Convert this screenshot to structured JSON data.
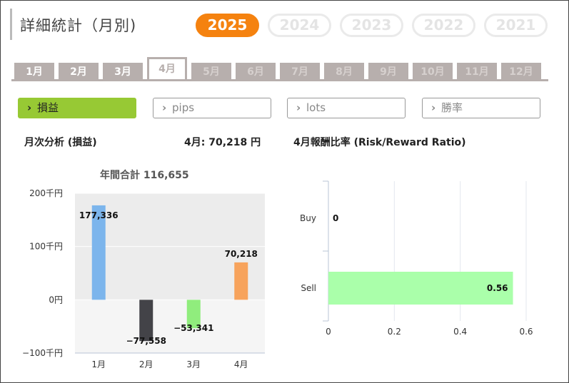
{
  "page_title": "詳細統計（月別)",
  "years": [
    {
      "label": "2025",
      "active": true
    },
    {
      "label": "2024",
      "active": false
    },
    {
      "label": "2023",
      "active": false
    },
    {
      "label": "2022",
      "active": false
    },
    {
      "label": "2021",
      "active": false
    }
  ],
  "months": [
    {
      "label": "1月",
      "state": "enabled"
    },
    {
      "label": "2月",
      "state": "enabled"
    },
    {
      "label": "3月",
      "state": "enabled"
    },
    {
      "label": "4月",
      "state": "active"
    },
    {
      "label": "5月",
      "state": "disabled"
    },
    {
      "label": "6月",
      "state": "disabled"
    },
    {
      "label": "7月",
      "state": "disabled"
    },
    {
      "label": "8月",
      "state": "disabled"
    },
    {
      "label": "9月",
      "state": "disabled"
    },
    {
      "label": "10月",
      "state": "disabled"
    },
    {
      "label": "11月",
      "state": "disabled"
    },
    {
      "label": "12月",
      "state": "disabled"
    }
  ],
  "metrics": [
    {
      "label": "損益",
      "active": true
    },
    {
      "label": "pips",
      "active": false
    },
    {
      "label": "lots",
      "active": false
    },
    {
      "label": "勝率",
      "active": false
    }
  ],
  "chevron": "›",
  "monthly": {
    "heading": "月次分析 (損益)",
    "month_total": "4月:  70,218 円",
    "annual_total": "年間合計 116,655"
  },
  "ratio": {
    "heading": "4月報酬比率 (Risk/Reward Ratio)"
  },
  "chart_data": [
    {
      "type": "bar",
      "title": "",
      "categories": [
        "1月",
        "2月",
        "3月",
        "4月"
      ],
      "values": [
        177336,
        -77558,
        -53341,
        70218
      ],
      "data_labels": [
        "177,336",
        "−77,558",
        "−53,341",
        "70,218"
      ],
      "colors": [
        "#7cb5ec",
        "#434348",
        "#90ed7d",
        "#f7a35c"
      ],
      "ylim": [
        -100000,
        200000
      ],
      "yticks": [
        {
          "value": 200000,
          "label": "200千円"
        },
        {
          "value": 100000,
          "label": "100千円"
        },
        {
          "value": 0,
          "label": "0円"
        },
        {
          "value": -100000,
          "label": "−100千円"
        }
      ],
      "plot_bands": [
        {
          "from": 0,
          "to": 200000,
          "color": "#ececec"
        },
        {
          "from": -100000,
          "to": 0,
          "color": "#f5f5f5"
        }
      ]
    },
    {
      "type": "bar",
      "orientation": "horizontal",
      "title": "",
      "categories": [
        "Buy",
        "Sell"
      ],
      "values": [
        0,
        0.56
      ],
      "data_labels": [
        "0",
        "0.56"
      ],
      "colors": [
        "#aaffaa",
        "#aaffaa"
      ],
      "xlim": [
        0,
        0.6
      ],
      "xticks": [
        {
          "value": 0,
          "label": "0"
        },
        {
          "value": 0.2,
          "label": "0.2"
        },
        {
          "value": 0.4,
          "label": "0.4"
        },
        {
          "value": 0.6,
          "label": "0.6"
        }
      ]
    }
  ]
}
